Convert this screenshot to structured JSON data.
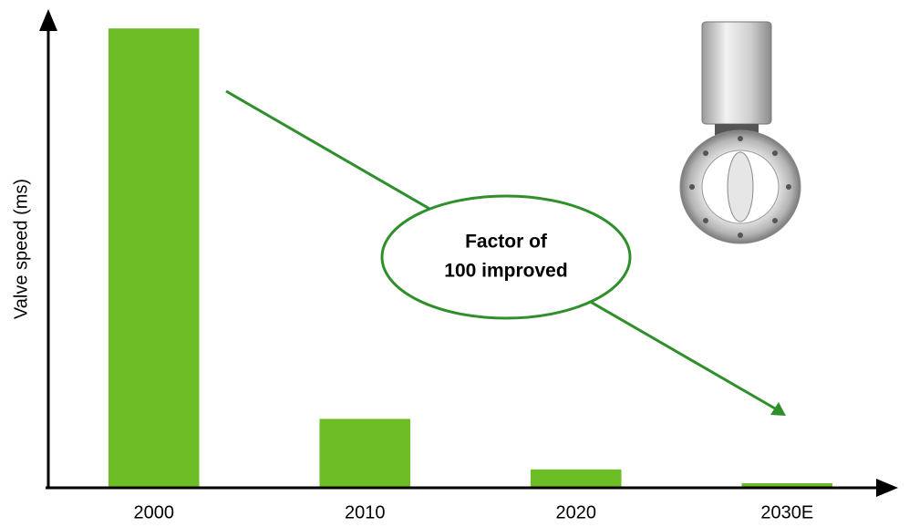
{
  "chart_data": {
    "type": "bar",
    "y_label": "Valve speed (ms)",
    "categories": [
      "2000",
      "2010",
      "2020",
      "2030E"
    ],
    "values": [
      100,
      15,
      4,
      1
    ],
    "color": "#6dbd27",
    "ylim": [
      0,
      105
    ],
    "annotation_lines": [
      "Factor of",
      "100 improved"
    ]
  }
}
